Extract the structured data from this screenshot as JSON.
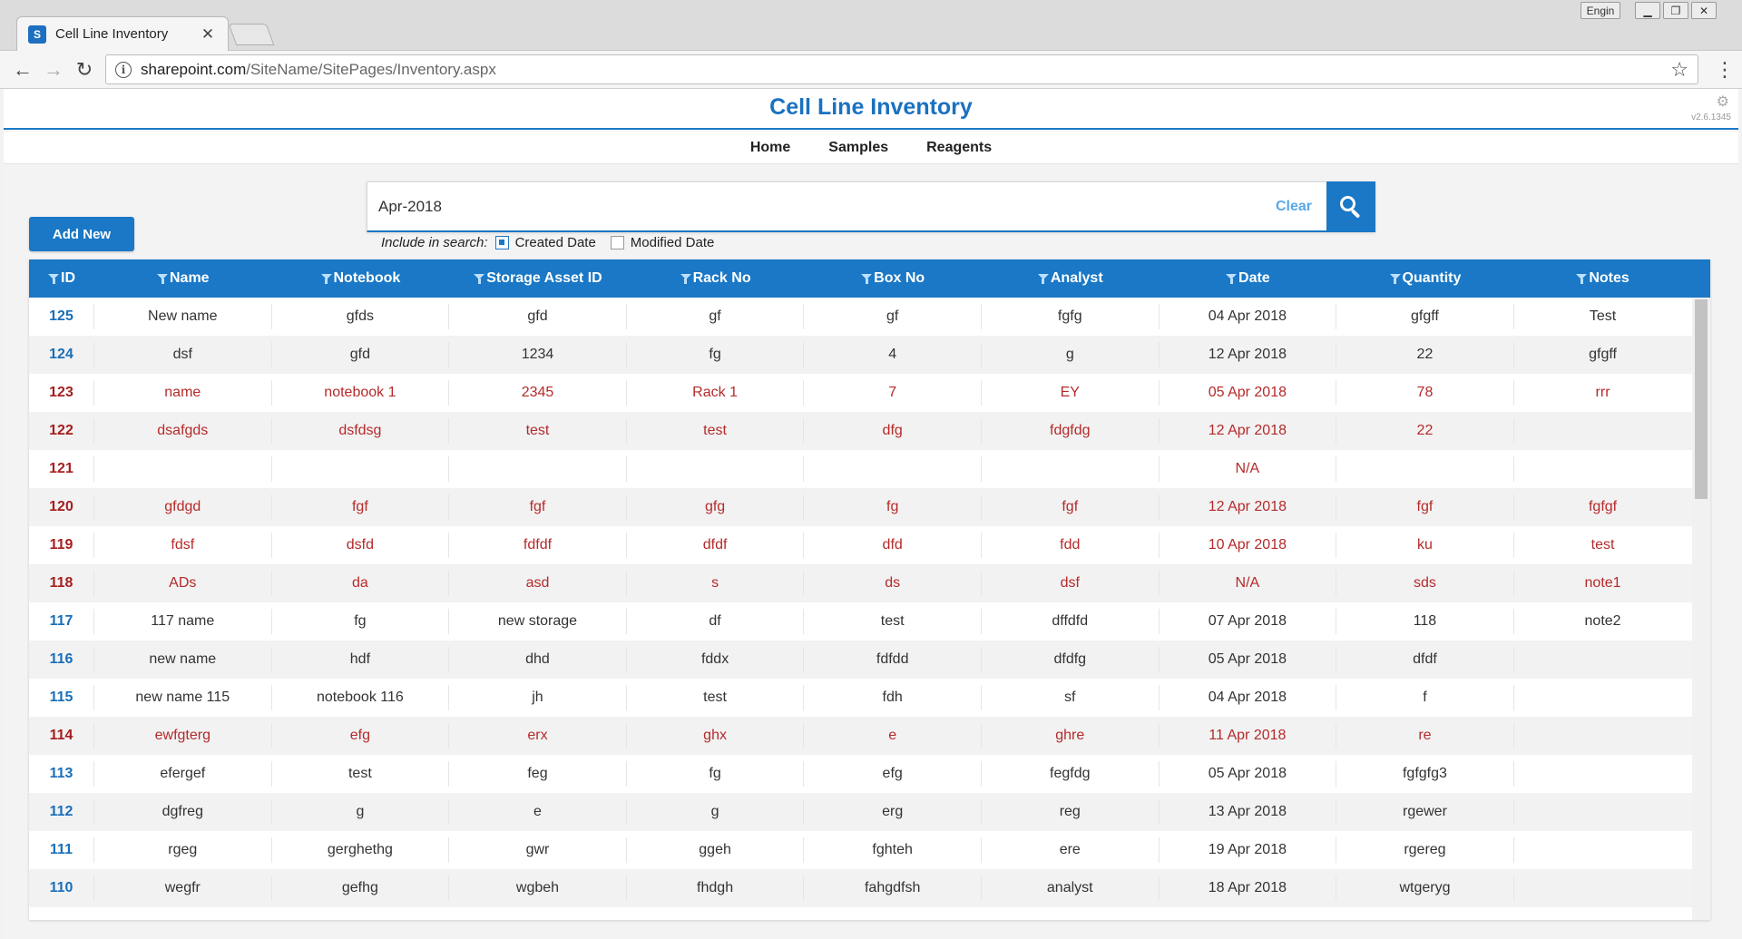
{
  "browser": {
    "tab_title": "Cell Line Inventory",
    "favicon_text": "S",
    "lang_button": "Engin",
    "url_host": "sharepoint.com",
    "url_path": "/SiteName/SitePages/Inventory.aspx"
  },
  "header": {
    "title": "Cell Line Inventory",
    "version": "v2.6.1345"
  },
  "nav": {
    "items": [
      "Home",
      "Samples",
      "Reagents"
    ]
  },
  "toolbar": {
    "add_label": "Add New"
  },
  "search": {
    "value": "Apr-2018",
    "clear_label": "Clear",
    "include_label": "Include in search:",
    "created_label": "Created Date",
    "modified_label": "Modified Date",
    "created_checked": true,
    "modified_checked": false
  },
  "table": {
    "columns": [
      "ID",
      "Name",
      "Notebook",
      "Storage Asset ID",
      "Rack No",
      "Box No",
      "Analyst",
      "Date",
      "Quantity",
      "Notes"
    ],
    "rows": [
      {
        "id": "125",
        "name": "New name",
        "notebook": "gfds",
        "storage": "gfd",
        "rack": "gf",
        "box": "gf",
        "analyst": "fgfg",
        "date": "04 Apr 2018",
        "quantity": "gfgff",
        "notes": "Test",
        "status": "normal"
      },
      {
        "id": "124",
        "name": "dsf",
        "notebook": "gfd",
        "storage": "1234",
        "rack": "fg",
        "box": "4",
        "analyst": "g",
        "date": "12 Apr 2018",
        "quantity": "22",
        "notes": "gfgff",
        "status": "normal"
      },
      {
        "id": "123",
        "name": "name",
        "notebook": "notebook 1",
        "storage": "2345",
        "rack": "Rack 1",
        "box": "7",
        "analyst": "EY",
        "date": "05 Apr 2018",
        "quantity": "78",
        "notes": "rrr",
        "status": "red"
      },
      {
        "id": "122",
        "name": "dsafgds",
        "notebook": "dsfdsg",
        "storage": "test",
        "rack": "test",
        "box": "dfg",
        "analyst": "fdgfdg",
        "date": "12 Apr 2018",
        "quantity": "22",
        "notes": "",
        "status": "red"
      },
      {
        "id": "121",
        "name": "",
        "notebook": "",
        "storage": "",
        "rack": "",
        "box": "",
        "analyst": "",
        "date": "N/A",
        "quantity": "",
        "notes": "",
        "status": "red"
      },
      {
        "id": "120",
        "name": "gfdgd",
        "notebook": "fgf",
        "storage": "fgf",
        "rack": "gfg",
        "box": "fg",
        "analyst": "fgf",
        "date": "12 Apr 2018",
        "quantity": "fgf",
        "notes": "fgfgf",
        "status": "red"
      },
      {
        "id": "119",
        "name": "fdsf",
        "notebook": "dsfd",
        "storage": "fdfdf",
        "rack": "dfdf",
        "box": "dfd",
        "analyst": "fdd",
        "date": "10 Apr 2018",
        "quantity": "ku",
        "notes": "test",
        "status": "red"
      },
      {
        "id": "118",
        "name": "ADs",
        "notebook": "da",
        "storage": "asd",
        "rack": "s",
        "box": "ds",
        "analyst": "dsf",
        "date": "N/A",
        "quantity": "sds",
        "notes": "note1",
        "status": "red"
      },
      {
        "id": "117",
        "name": "117 name",
        "notebook": "fg",
        "storage": "new storage",
        "rack": "df",
        "box": "test",
        "analyst": "dffdfd",
        "date": "07 Apr 2018",
        "quantity": "118",
        "notes": "note2",
        "status": "normal"
      },
      {
        "id": "116",
        "name": "new name",
        "notebook": "hdf",
        "storage": "dhd",
        "rack": "fddx",
        "box": "fdfdd",
        "analyst": "dfdfg",
        "date": "05 Apr 2018",
        "quantity": "dfdf",
        "notes": "",
        "status": "normal"
      },
      {
        "id": "115",
        "name": "new name 115",
        "notebook": "notebook 116",
        "storage": "jh",
        "rack": "test",
        "box": "fdh",
        "analyst": "sf",
        "date": "04 Apr 2018",
        "quantity": "f",
        "notes": "",
        "status": "normal"
      },
      {
        "id": "114",
        "name": "ewfgterg",
        "notebook": "efg",
        "storage": "erx",
        "rack": "ghx",
        "box": "e",
        "analyst": "ghre",
        "date": "11 Apr 2018",
        "quantity": "re",
        "notes": "",
        "status": "red"
      },
      {
        "id": "113",
        "name": "efergef",
        "notebook": "test",
        "storage": "feg",
        "rack": "fg",
        "box": "efg",
        "analyst": "fegfdg",
        "date": "05 Apr 2018",
        "quantity": "fgfgfg3",
        "notes": "",
        "status": "normal"
      },
      {
        "id": "112",
        "name": "dgfreg",
        "notebook": "g",
        "storage": "e",
        "rack": "g",
        "box": "erg",
        "analyst": "reg",
        "date": "13 Apr 2018",
        "quantity": "rgewer",
        "notes": "",
        "status": "normal"
      },
      {
        "id": "111",
        "name": "rgeg",
        "notebook": "gerghethg",
        "storage": "gwr",
        "rack": "ggeh",
        "box": "fghteh",
        "analyst": "ere",
        "date": "19 Apr 2018",
        "quantity": "rgereg",
        "notes": "",
        "status": "normal"
      },
      {
        "id": "110",
        "name": "wegfr",
        "notebook": "gefhg",
        "storage": "wgbeh",
        "rack": "fhdgh",
        "box": "fahgdfsh",
        "analyst": "analyst",
        "date": "18 Apr 2018",
        "quantity": "wtgeryg",
        "notes": "",
        "status": "normal"
      }
    ]
  },
  "colors": {
    "accent": "#1a78c6",
    "red_row_text": "#b52a2a",
    "id_blue": "#1a6fb8"
  }
}
